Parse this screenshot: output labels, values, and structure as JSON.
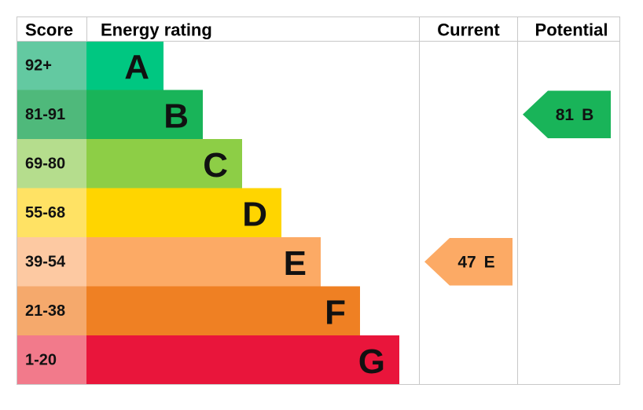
{
  "headers": {
    "score": "Score",
    "rating": "Energy rating",
    "current": "Current",
    "potential": "Potential"
  },
  "bands": [
    {
      "score": "92+",
      "letter": "A",
      "score_color": "#63c9a1",
      "color": "#00c781"
    },
    {
      "score": "81-91",
      "letter": "B",
      "score_color": "#4fb97b",
      "color": "#19b459"
    },
    {
      "score": "69-80",
      "letter": "C",
      "score_color": "#b5dd8d",
      "color": "#8dce46"
    },
    {
      "score": "55-68",
      "letter": "D",
      "score_color": "#ffe264",
      "color": "#ffd500"
    },
    {
      "score": "39-54",
      "letter": "E",
      "score_color": "#fdc9a2",
      "color": "#fcaa65"
    },
    {
      "score": "21-38",
      "letter": "F",
      "score_color": "#f5a96c",
      "color": "#ef8023"
    },
    {
      "score": "1-20",
      "letter": "G",
      "score_color": "#f27a8b",
      "color": "#e9153b"
    }
  ],
  "current": {
    "value": 47,
    "letter": "E"
  },
  "potential": {
    "value": 81,
    "letter": "B"
  }
}
